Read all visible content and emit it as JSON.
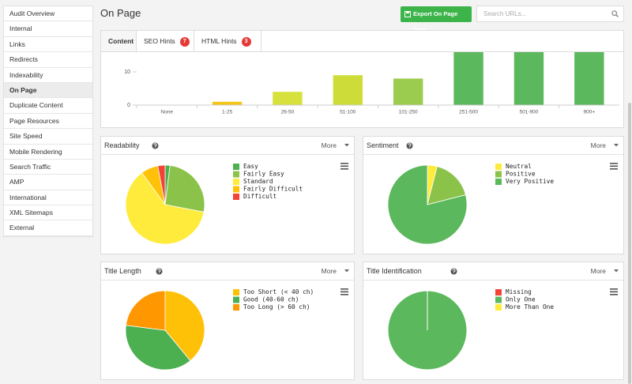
{
  "sidebar": {
    "items": [
      "Audit Overview",
      "Internal",
      "Links",
      "Redirects",
      "Indexability",
      "On Page",
      "Duplicate Content",
      "Page Resources",
      "Site Speed",
      "Mobile Rendering",
      "Search Traffic",
      "AMP",
      "International",
      "XML Sitemaps",
      "External"
    ]
  },
  "header": {
    "title": "On Page",
    "export_button": "Export On Page Data",
    "search_placeholder": "Search URLs..."
  },
  "tabs": [
    {
      "label": "Content"
    },
    {
      "label": "SEO Hints",
      "badge": 7
    },
    {
      "label": "HTML Hints",
      "badge": 3
    }
  ],
  "panel_menu_label": "More",
  "chart_data": [
    {
      "type": "bar",
      "categories": [
        "None",
        "1-25",
        "26-50",
        "51-100",
        "101-250",
        "251-500",
        "501-900",
        "900+"
      ],
      "values": [
        0,
        1,
        4,
        9,
        8,
        35,
        28,
        22
      ],
      "colors": [
        "#cccccc",
        "#f5c518",
        "#d6e13e",
        "#cddc39",
        "#9ccc4f",
        "#5cb85c",
        "#5cb85c",
        "#5cb85c"
      ],
      "ylim": [
        0,
        50
      ],
      "yticks": [
        0,
        10,
        20,
        30,
        40,
        50
      ],
      "grid": false
    },
    {
      "type": "pie",
      "title": "Readability",
      "categories": [
        "Easy",
        "Fairly Easy",
        "Standard",
        "Fairly Difficult",
        "Difficult"
      ],
      "values": [
        2,
        26,
        62,
        7,
        3
      ],
      "colors": [
        "#4caf50",
        "#8bc34a",
        "#ffeb3b",
        "#ffc107",
        "#f44336"
      ]
    },
    {
      "type": "pie",
      "title": "Sentiment",
      "categories": [
        "Neutral",
        "Positive",
        "Very Positive"
      ],
      "values": [
        4,
        17,
        79
      ],
      "colors": [
        "#ffeb3b",
        "#8bc34a",
        "#5cb85c"
      ]
    },
    {
      "type": "pie",
      "title": "Title Length",
      "categories": [
        "Too Short (< 40 ch)",
        "Good (40-60 ch)",
        "Too Long (> 60 ch)"
      ],
      "values": [
        39,
        38,
        23
      ],
      "colors": [
        "#ffc107",
        "#4caf50",
        "#ff9800"
      ]
    },
    {
      "type": "pie",
      "title": "Title Identification",
      "categories": [
        "Missing",
        "Only One",
        "More Than One"
      ],
      "values": [
        0,
        100,
        0
      ],
      "colors": [
        "#f44336",
        "#5cb85c",
        "#ffeb3b"
      ]
    }
  ]
}
